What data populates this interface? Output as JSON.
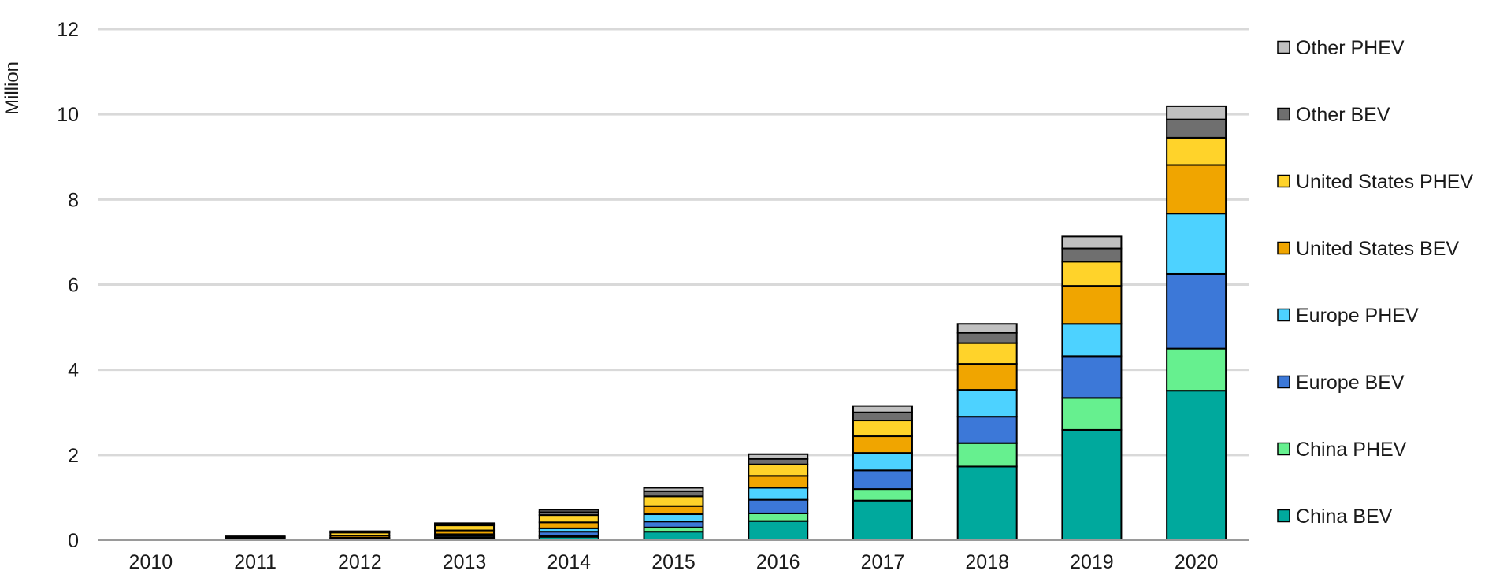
{
  "chart_data": {
    "type": "bar",
    "stacked": true,
    "title": "",
    "xlabel": "",
    "ylabel": "Million",
    "ylim": [
      0,
      12
    ],
    "yticks": [
      "0",
      "2",
      "4",
      "6",
      "8",
      "10",
      "12"
    ],
    "categories": [
      "2010",
      "2011",
      "2012",
      "2013",
      "2014",
      "2015",
      "2016",
      "2017",
      "2018",
      "2019",
      "2020"
    ],
    "grid": true,
    "legend_position": "right",
    "series": [
      {
        "name": "China BEV",
        "color": "#00a99d",
        "values": [
          0.0,
          0.01,
          0.02,
          0.04,
          0.08,
          0.2,
          0.45,
          0.93,
          1.73,
          2.59,
          3.51
        ]
      },
      {
        "name": "China PHEV",
        "color": "#66f08f",
        "values": [
          0.0,
          0.0,
          0.0,
          0.02,
          0.03,
          0.1,
          0.18,
          0.27,
          0.55,
          0.75,
          0.99
        ]
      },
      {
        "name": "Europe BEV",
        "color": "#3c78d8",
        "values": [
          0.0,
          0.01,
          0.02,
          0.04,
          0.09,
          0.14,
          0.32,
          0.44,
          0.62,
          0.98,
          1.75
        ]
      },
      {
        "name": "Europe PHEV",
        "color": "#4dd2ff",
        "values": [
          0.0,
          0.0,
          0.02,
          0.04,
          0.08,
          0.17,
          0.28,
          0.41,
          0.63,
          0.76,
          1.42
        ]
      },
      {
        "name": "United States BEV",
        "color": "#f0a500",
        "values": [
          0.0,
          0.02,
          0.05,
          0.09,
          0.14,
          0.19,
          0.28,
          0.39,
          0.61,
          0.89,
          1.14
        ]
      },
      {
        "name": "United States PHEV",
        "color": "#ffd32a",
        "values": [
          0.0,
          0.03,
          0.07,
          0.12,
          0.17,
          0.23,
          0.27,
          0.37,
          0.49,
          0.57,
          0.64
        ]
      },
      {
        "name": "Other BEV",
        "color": "#6f6f6f",
        "values": [
          0.0,
          0.01,
          0.02,
          0.03,
          0.07,
          0.12,
          0.13,
          0.19,
          0.24,
          0.31,
          0.43
        ]
      },
      {
        "name": "Other PHEV",
        "color": "#c0c0c0",
        "values": [
          0.0,
          0.01,
          0.01,
          0.02,
          0.05,
          0.08,
          0.11,
          0.15,
          0.21,
          0.28,
          0.31
        ]
      }
    ]
  }
}
